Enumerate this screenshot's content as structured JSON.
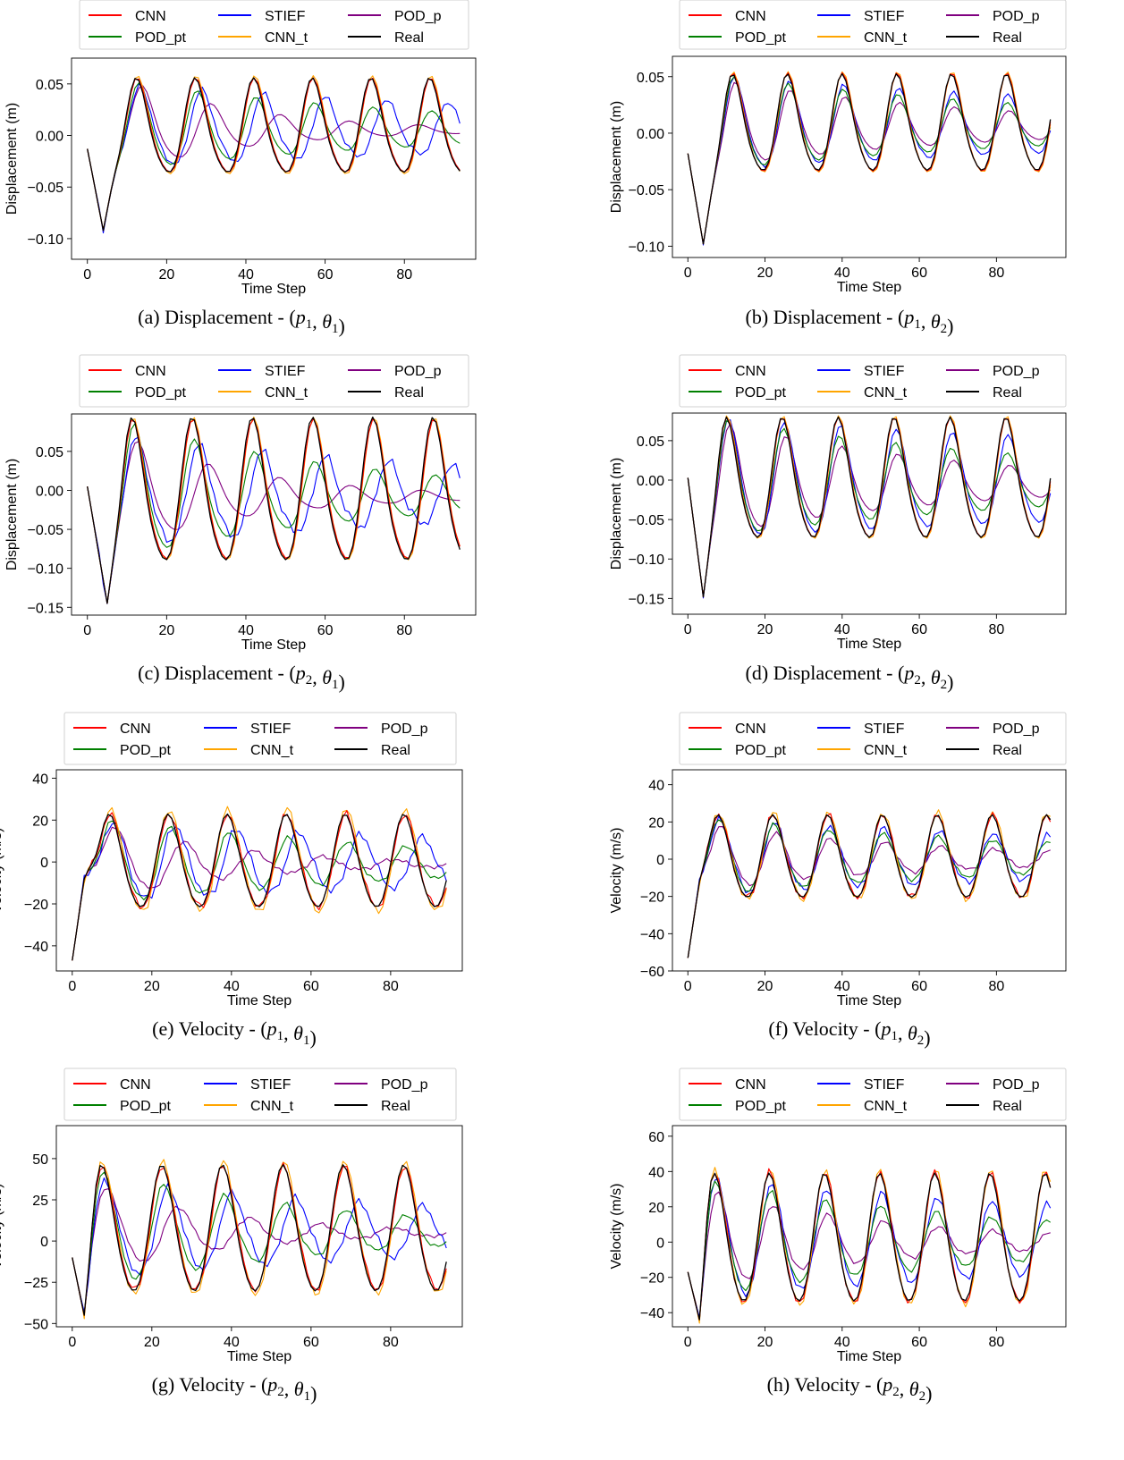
{
  "colors": {
    "CNN": "#ff0000",
    "POD_pt": "#008000",
    "STIEF": "#0000ff",
    "CNN_t": "#ffa500",
    "POD_p": "#800080",
    "Real": "#000000"
  },
  "chart_data": [
    {
      "type": "line",
      "caption": {
        "letter": "(a)",
        "text": "Displacement - ",
        "p": "p",
        "p_sub": "1",
        "theta": "θ",
        "theta_sub": "1"
      },
      "xlabel": "Time Step",
      "ylabel": "Displacement (m)",
      "xlim": [
        -4,
        98
      ],
      "ylim": [
        -0.12,
        0.075
      ],
      "xticks": [
        0,
        20,
        40,
        60,
        80
      ],
      "xtick_labels": [
        "0",
        "20",
        "40",
        "60",
        "80"
      ],
      "yticks": [
        -0.1,
        -0.05,
        0.0,
        0.05
      ],
      "ytick_labels": [
        "−0.10",
        "−0.05",
        "0.00",
        "0.05"
      ],
      "legend": [
        "CNN",
        "STIEF",
        "POD_p",
        "POD_pt",
        "CNN_t",
        "Real"
      ],
      "signal": {
        "initial": -0.013,
        "trough_t": 4,
        "trough_v": -0.092,
        "period": 14.8,
        "phase_t": 12.6,
        "amp": [
          0.06,
          0.045
        ],
        "amp_decay": 0.0,
        "offset": 0.005,
        "bend": 0.15
      },
      "series": [
        {
          "name": "Real",
          "amp": 1.0,
          "lag": 0.0,
          "decay": 0.0,
          "noise": 0.0
        },
        {
          "name": "CNN",
          "amp": 1.0,
          "lag": 0.2,
          "decay": 0.0,
          "noise": 0.0
        },
        {
          "name": "CNN_t",
          "amp": 1.04,
          "lag": 0.3,
          "decay": 0.0,
          "noise": 0.0
        },
        {
          "name": "POD_pt",
          "amp": 0.9,
          "lag": 0.6,
          "decay": 0.012,
          "noise": 0.0
        },
        {
          "name": "STIEF",
          "amp": 0.85,
          "lag": 1.0,
          "decay": 0.006,
          "noise": 0.35,
          "pstretch": 1.05
        },
        {
          "name": "POD_p",
          "amp": 0.85,
          "lag": 1.5,
          "decay": 0.03,
          "noise": 0.0,
          "pstretch": 1.18
        }
      ]
    },
    {
      "type": "line",
      "caption": {
        "letter": "(b)",
        "text": "Displacement - ",
        "p": "p",
        "p_sub": "1",
        "theta": "θ",
        "theta_sub": "2"
      },
      "xlabel": "Time Step",
      "ylabel": "Displacement (m)",
      "xlim": [
        -4,
        98
      ],
      "ylim": [
        -0.11,
        0.068
      ],
      "xticks": [
        0,
        20,
        40,
        60,
        80
      ],
      "xtick_labels": [
        "0",
        "20",
        "40",
        "60",
        "80"
      ],
      "yticks": [
        -0.1,
        -0.05,
        0.0,
        0.05
      ],
      "ytick_labels": [
        "−0.10",
        "−0.05",
        "0.00",
        "0.05"
      ],
      "legend": [
        "CNN",
        "STIEF",
        "POD_p",
        "POD_pt",
        "CNN_t",
        "Real"
      ],
      "signal": {
        "initial": -0.018,
        "trough_t": 4,
        "trough_v": -0.098,
        "period": 14.2,
        "phase_t": 11.8,
        "amp": [
          0.045,
          0.042
        ],
        "amp_decay": 0.0,
        "offset": 0.005,
        "bend": 0.15
      },
      "series": [
        {
          "name": "Real",
          "amp": 1.0,
          "lag": 0.0,
          "decay": 0.0,
          "noise": 0.0
        },
        {
          "name": "CNN",
          "amp": 1.02,
          "lag": 0.1,
          "decay": 0.0,
          "noise": 0.0
        },
        {
          "name": "CNN_t",
          "amp": 1.04,
          "lag": 0.2,
          "decay": 0.0,
          "noise": 0.0
        },
        {
          "name": "POD_pt",
          "amp": 0.95,
          "lag": 0.3,
          "decay": 0.01,
          "noise": 0.0
        },
        {
          "name": "STIEF",
          "amp": 0.95,
          "lag": 0.5,
          "decay": 0.006,
          "noise": 0.15
        },
        {
          "name": "POD_p",
          "amp": 0.85,
          "lag": 0.8,
          "decay": 0.014,
          "noise": 0.0
        }
      ]
    },
    {
      "type": "line",
      "caption": {
        "letter": "(c)",
        "text": "Displacement - ",
        "p": "p",
        "p_sub": "2",
        "theta": "θ",
        "theta_sub": "1"
      },
      "xlabel": "Time Step",
      "ylabel": "Displacement (m)",
      "xlim": [
        -4,
        98
      ],
      "ylim": [
        -0.16,
        0.098
      ],
      "xticks": [
        0,
        20,
        40,
        60,
        80
      ],
      "xtick_labels": [
        "0",
        "20",
        "40",
        "60",
        "80"
      ],
      "yticks": [
        -0.15,
        -0.1,
        -0.05,
        0.0,
        0.05
      ],
      "ytick_labels": [
        "−0.15",
        "−0.10",
        "−0.05",
        "0.00",
        "0.05"
      ],
      "legend": [
        "CNN",
        "STIEF",
        "POD_p",
        "POD_pt",
        "CNN_t",
        "Real"
      ],
      "signal": {
        "initial": 0.005,
        "trough_t": 5,
        "trough_v": -0.145,
        "period": 15.2,
        "phase_t": 11.5,
        "amp": [
          0.09,
          0.09
        ],
        "amp_decay": 0.0,
        "offset": -0.008,
        "bend": 0.15
      },
      "series": [
        {
          "name": "Real",
          "amp": 1.0,
          "lag": 0.0,
          "decay": 0.0,
          "noise": 0.0
        },
        {
          "name": "CNN",
          "amp": 0.98,
          "lag": 0.2,
          "decay": 0.0,
          "noise": 0.0
        },
        {
          "name": "CNN_t",
          "amp": 1.0,
          "lag": 0.3,
          "decay": 0.0,
          "noise": 0.0
        },
        {
          "name": "POD_pt",
          "amp": 0.92,
          "lag": 0.6,
          "decay": 0.016,
          "noise": 0.0
        },
        {
          "name": "STIEF",
          "amp": 0.75,
          "lag": 1.0,
          "decay": 0.008,
          "noise": 0.4,
          "pstretch": 1.05
        },
        {
          "name": "POD_p",
          "amp": 0.7,
          "lag": 1.5,
          "decay": 0.03,
          "noise": 0.0,
          "pstretch": 1.18
        }
      ]
    },
    {
      "type": "line",
      "caption": {
        "letter": "(d)",
        "text": "Displacement - ",
        "p": "p",
        "p_sub": "2",
        "theta": "θ",
        "theta_sub": "2"
      },
      "xlabel": "Time Step",
      "ylabel": "Displacement (m)",
      "xlim": [
        -4,
        98
      ],
      "ylim": [
        -0.17,
        0.085
      ],
      "xticks": [
        0,
        20,
        40,
        60,
        80
      ],
      "xtick_labels": [
        "0",
        "20",
        "40",
        "60",
        "80"
      ],
      "yticks": [
        -0.15,
        -0.1,
        -0.05,
        0.0,
        0.05
      ],
      "ytick_labels": [
        "−0.15",
        "−0.10",
        "−0.05",
        "0.00",
        "0.05"
      ],
      "legend": [
        "CNN",
        "STIEF",
        "POD_p",
        "POD_pt",
        "CNN_t",
        "Real"
      ],
      "signal": {
        "initial": 0.003,
        "trough_t": 4,
        "trough_v": -0.148,
        "period": 14.5,
        "phase_t": 10.2,
        "amp": [
          0.072,
          0.075
        ],
        "amp_decay": 0.0,
        "offset": -0.005,
        "bend": 0.15
      },
      "series": [
        {
          "name": "Real",
          "amp": 1.0,
          "lag": 0.0,
          "decay": 0.0,
          "noise": 0.0
        },
        {
          "name": "CNN",
          "amp": 1.0,
          "lag": 0.1,
          "decay": 0.0,
          "noise": 0.0
        },
        {
          "name": "CNN_t",
          "amp": 1.02,
          "lag": 0.2,
          "decay": 0.0,
          "noise": 0.0
        },
        {
          "name": "POD_pt",
          "amp": 0.96,
          "lag": 0.4,
          "decay": 0.01,
          "noise": 0.0
        },
        {
          "name": "STIEF",
          "amp": 0.98,
          "lag": 0.6,
          "decay": 0.004,
          "noise": 0.12
        },
        {
          "name": "POD_p",
          "amp": 0.9,
          "lag": 1.0,
          "decay": 0.016,
          "noise": 0.0
        }
      ]
    },
    {
      "type": "line",
      "caption": {
        "letter": "(e)",
        "text": "Velocity - ",
        "p": "p",
        "p_sub": "1",
        "theta": "θ",
        "theta_sub": "1"
      },
      "xlabel": "Time Step",
      "ylabel": "Velocity (m/s)",
      "xlim": [
        -4,
        98
      ],
      "ylim": [
        -52,
        44
      ],
      "xticks": [
        0,
        20,
        40,
        60,
        80
      ],
      "xtick_labels": [
        "0",
        "20",
        "40",
        "60",
        "80"
      ],
      "yticks": [
        -40,
        -20,
        0,
        20,
        40
      ],
      "ytick_labels": [
        "−40",
        "−20",
        "0",
        "20",
        "40"
      ],
      "legend": [
        "CNN",
        "STIEF",
        "POD_p",
        "POD_pt",
        "CNN_t",
        "Real"
      ],
      "signal": {
        "initial": -47,
        "trough_t": 3,
        "trough_v": -8,
        "period": 14.8,
        "phase_t": 9.5,
        "amp": [
          26,
          22
        ],
        "amp_decay": 0.004,
        "offset": -1,
        "bend": 0.1
      },
      "series": [
        {
          "name": "Real",
          "amp": 1.0,
          "lag": 0.0,
          "decay": 0.0,
          "noise": 0.0
        },
        {
          "name": "CNN",
          "amp": 1.0,
          "lag": 0.2,
          "decay": 0.0,
          "noise": 0.5
        },
        {
          "name": "CNN_t",
          "amp": 1.1,
          "lag": 0.3,
          "decay": 0.0,
          "noise": 0.5
        },
        {
          "name": "POD_pt",
          "amp": 0.9,
          "lag": 0.6,
          "decay": 0.012,
          "noise": 0.3
        },
        {
          "name": "STIEF",
          "amp": 0.85,
          "lag": 1.0,
          "decay": 0.006,
          "noise": 0.6,
          "pstretch": 1.05
        },
        {
          "name": "POD_p",
          "amp": 0.75,
          "lag": 1.5,
          "decay": 0.03,
          "noise": 0.3,
          "pstretch": 1.18
        }
      ]
    },
    {
      "type": "line",
      "caption": {
        "letter": "(f)",
        "text": "Velocity - ",
        "p": "p",
        "p_sub": "1",
        "theta": "θ",
        "theta_sub": "2"
      },
      "xlabel": "Time Step",
      "ylabel": "Velocity (m/s)",
      "xlim": [
        -4,
        98
      ],
      "ylim": [
        -60,
        48
      ],
      "xticks": [
        0,
        20,
        40,
        60,
        80
      ],
      "xtick_labels": [
        "0",
        "20",
        "40",
        "60",
        "80"
      ],
      "yticks": [
        -60,
        -40,
        -20,
        0,
        20,
        40
      ],
      "ytick_labels": [
        "−60",
        "−40",
        "−20",
        "0",
        "20",
        "40"
      ],
      "legend": [
        "CNN",
        "STIEF",
        "POD_p",
        "POD_pt",
        "CNN_t",
        "Real"
      ],
      "signal": {
        "initial": -53,
        "trough_t": 3,
        "trough_v": -12,
        "period": 14.2,
        "phase_t": 8,
        "amp": [
          30,
          22
        ],
        "amp_decay": 0.004,
        "offset": 0,
        "bend": 0.1
      },
      "series": [
        {
          "name": "Real",
          "amp": 1.0,
          "lag": 0.0,
          "decay": 0.0,
          "noise": 0.0
        },
        {
          "name": "CNN",
          "amp": 1.0,
          "lag": 0.1,
          "decay": 0.0,
          "noise": 0.5
        },
        {
          "name": "CNN_t",
          "amp": 1.05,
          "lag": 0.2,
          "decay": 0.0,
          "noise": 0.5
        },
        {
          "name": "POD_pt",
          "amp": 0.9,
          "lag": 0.3,
          "decay": 0.01,
          "noise": 0.3
        },
        {
          "name": "STIEF",
          "amp": 0.9,
          "lag": 0.5,
          "decay": 0.006,
          "noise": 0.5
        },
        {
          "name": "POD_p",
          "amp": 0.75,
          "lag": 0.8,
          "decay": 0.016,
          "noise": 0.3
        }
      ]
    },
    {
      "type": "line",
      "caption": {
        "letter": "(g)",
        "text": "Velocity - ",
        "p": "p",
        "p_sub": "2",
        "theta": "θ",
        "theta_sub": "1"
      },
      "xlabel": "Time Step",
      "ylabel": "Velocity (m/s)",
      "xlim": [
        -4,
        98
      ],
      "ylim": [
        -52,
        70
      ],
      "xticks": [
        0,
        20,
        40,
        60,
        80
      ],
      "xtick_labels": [
        "0",
        "20",
        "40",
        "60",
        "80"
      ],
      "yticks": [
        -50,
        -25,
        0,
        25,
        50
      ],
      "ytick_labels": [
        "−50",
        "−25",
        "0",
        "25",
        "50"
      ],
      "legend": [
        "CNN",
        "STIEF",
        "POD_p",
        "POD_pt",
        "CNN_t",
        "Real"
      ],
      "signal": {
        "initial": -10,
        "trough_t": 3,
        "trough_v": -45,
        "period": 15.2,
        "phase_t": 7.5,
        "amp": [
          48,
          38
        ],
        "amp_decay": 0.004,
        "offset": 5,
        "bend": 0.1
      },
      "series": [
        {
          "name": "Real",
          "amp": 1.0,
          "lag": 0.0,
          "decay": 0.0,
          "noise": 0.0
        },
        {
          "name": "CNN",
          "amp": 0.98,
          "lag": 0.2,
          "decay": 0.0,
          "noise": 0.3
        },
        {
          "name": "CNN_t",
          "amp": 1.05,
          "lag": 0.3,
          "decay": 0.0,
          "noise": 0.3
        },
        {
          "name": "POD_pt",
          "amp": 0.9,
          "lag": 0.6,
          "decay": 0.016,
          "noise": 0.2
        },
        {
          "name": "STIEF",
          "amp": 0.75,
          "lag": 1.0,
          "decay": 0.008,
          "noise": 0.4,
          "pstretch": 1.05
        },
        {
          "name": "POD_p",
          "amp": 0.65,
          "lag": 1.5,
          "decay": 0.03,
          "noise": 0.2,
          "pstretch": 1.18
        }
      ]
    },
    {
      "type": "line",
      "caption": {
        "letter": "(h)",
        "text": "Velocity - ",
        "p": "p",
        "p_sub": "2",
        "theta": "θ",
        "theta_sub": "2"
      },
      "xlabel": "Time Step",
      "ylabel": "Velocity (m/s)",
      "xlim": [
        -4,
        98
      ],
      "ylim": [
        -48,
        66
      ],
      "xticks": [
        0,
        20,
        40,
        60,
        80
      ],
      "xtick_labels": [
        "0",
        "20",
        "40",
        "60",
        "80"
      ],
      "yticks": [
        -40,
        -20,
        0,
        20,
        40,
        60
      ],
      "ytick_labels": [
        "−40",
        "−20",
        "0",
        "20",
        "40",
        "60"
      ],
      "legend": [
        "CNN",
        "STIEF",
        "POD_p",
        "POD_pt",
        "CNN_t",
        "Real"
      ],
      "signal": {
        "initial": -17,
        "trough_t": 3,
        "trough_v": -44,
        "period": 14.3,
        "phase_t": 7,
        "amp": [
          50,
          36
        ],
        "amp_decay": 0.004,
        "offset": 0,
        "bend": 0.1
      },
      "series": [
        {
          "name": "Real",
          "amp": 1.0,
          "lag": 0.0,
          "decay": 0.0,
          "noise": 0.0
        },
        {
          "name": "CNN",
          "amp": 1.02,
          "lag": 0.1,
          "decay": 0.0,
          "noise": 0.3
        },
        {
          "name": "CNN_t",
          "amp": 1.05,
          "lag": 0.2,
          "decay": 0.0,
          "noise": 0.3
        },
        {
          "name": "POD_pt",
          "amp": 0.88,
          "lag": 0.4,
          "decay": 0.012,
          "noise": 0.2
        },
        {
          "name": "STIEF",
          "amp": 0.92,
          "lag": 0.6,
          "decay": 0.006,
          "noise": 0.3
        },
        {
          "name": "POD_p",
          "amp": 0.72,
          "lag": 1.0,
          "decay": 0.02,
          "noise": 0.2
        }
      ]
    }
  ]
}
